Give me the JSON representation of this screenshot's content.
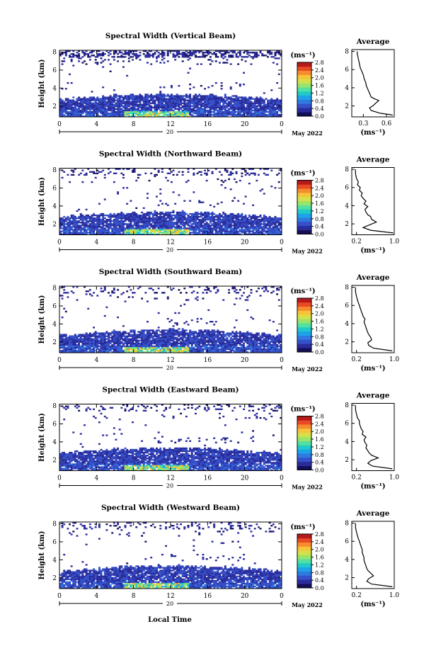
{
  "figure": {
    "xlabel": "Local Time",
    "date_label": "May 2022",
    "day_label": "20",
    "colorbar_unit": "(ms⁻¹)",
    "profile_title": "Average",
    "profile_unit": "(ms⁻¹)",
    "ylabel": "Height (km)",
    "x_ticks": [
      "0",
      "4",
      "8",
      "12",
      "16",
      "20",
      "0"
    ],
    "y_ticks": [
      "2",
      "4",
      "6",
      "8"
    ],
    "colorbar_ticks": [
      "0.0",
      "0.4",
      "0.8",
      "1.2",
      "1.6",
      "2.0",
      "2.4",
      "2.8"
    ],
    "colorscale": [
      "#150f5a",
      "#2b2c9c",
      "#3550c8",
      "#2f79e0",
      "#1ca3e8",
      "#21c9c9",
      "#53e0a0",
      "#9be46a",
      "#d6e04a",
      "#f5c43a",
      "#f78c2e",
      "#e84a26",
      "#b51a1a"
    ],
    "profile_y_ticks": [
      "2",
      "4",
      "6",
      "8"
    ]
  },
  "chart_data": [
    {
      "type": "heatmap",
      "title": "Spectral Width (Vertical Beam)",
      "xlabel": "",
      "ylabel": "Height (km)",
      "xlim": [
        0,
        24
      ],
      "ylim": [
        0.8,
        8.2
      ],
      "zlim": [
        0.0,
        2.8
      ],
      "note_regions": [
        {
          "region": "0.8-3 km, 0-24 h",
          "typical_value": 0.4,
          "max_value": 2.2,
          "max_near": "8-12 h, 1 km"
        },
        {
          "region": "7-8 km, 1.5-21 h",
          "typical_value": 0.2
        }
      ],
      "profile": {
        "title": "Average",
        "xlabel": "(ms⁻¹)",
        "x_ticks": [
          "0.3",
          "0.6"
        ],
        "xlim": [
          0.15,
          0.7
        ],
        "ylim": [
          0.8,
          8.2
        ],
        "height": [
          1.0,
          1.2,
          1.5,
          1.8,
          2.0,
          2.3,
          2.6,
          2.8,
          3.0,
          3.4,
          3.8,
          4.2,
          4.6,
          5.0,
          5.4,
          5.8,
          6.2,
          6.6,
          7.0,
          7.4,
          7.8,
          8.0
        ],
        "value": [
          0.68,
          0.52,
          0.4,
          0.38,
          0.42,
          0.46,
          0.5,
          0.44,
          0.4,
          0.38,
          0.36,
          0.34,
          0.33,
          0.31,
          0.3,
          0.28,
          0.26,
          0.25,
          0.24,
          0.23,
          0.22,
          0.22
        ]
      }
    },
    {
      "type": "heatmap",
      "title": "Spectral Width (Northward Beam)",
      "xlabel": "",
      "ylabel": "Height (km)",
      "xlim": [
        0,
        24
      ],
      "ylim": [
        0.8,
        8.2
      ],
      "zlim": [
        0.0,
        2.8
      ],
      "note_regions": [
        {
          "region": "0.8-3.3 km, 0-24 h",
          "typical_value": 0.4,
          "max_value": 1.8,
          "max_near": "8-14 h, 1 km"
        },
        {
          "region": "6.5-8 km, sparse",
          "typical_value": 0.2
        }
      ],
      "profile": {
        "title": "Average",
        "xlabel": "(ms⁻¹)",
        "x_ticks": [
          "0.2",
          "1.0"
        ],
        "xlim": [
          0.1,
          1.0
        ],
        "ylim": [
          0.8,
          8.2
        ],
        "height": [
          1.0,
          1.3,
          1.6,
          1.9,
          2.2,
          2.5,
          2.8,
          3.0,
          3.3,
          3.6,
          3.9,
          4.2,
          4.5,
          4.8,
          5.1,
          5.4,
          5.7,
          6.0,
          6.3,
          6.6,
          7.0,
          7.5,
          8.0
        ],
        "value": [
          0.98,
          0.5,
          0.34,
          0.48,
          0.62,
          0.52,
          0.5,
          0.44,
          0.4,
          0.38,
          0.44,
          0.36,
          0.4,
          0.34,
          0.3,
          0.32,
          0.26,
          0.28,
          0.22,
          0.24,
          0.2,
          0.18,
          0.18
        ]
      }
    },
    {
      "type": "heatmap",
      "title": "Spectral Width (Southward Beam)",
      "xlabel": "",
      "ylabel": "Height (km)",
      "xlim": [
        0,
        24
      ],
      "ylim": [
        0.8,
        8.2
      ],
      "zlim": [
        0.0,
        2.8
      ],
      "note_regions": [
        {
          "region": "0.8-3.3 km, 0-24 h",
          "typical_value": 0.4,
          "max_value": 1.8,
          "max_near": "8-14 h, 1 km"
        },
        {
          "region": "6.5-8 km, sparse",
          "typical_value": 0.2
        }
      ],
      "profile": {
        "title": "Average",
        "xlabel": "(ms⁻¹)",
        "x_ticks": [
          "0.2",
          "1.0"
        ],
        "xlim": [
          0.1,
          1.0
        ],
        "ylim": [
          0.8,
          8.2
        ],
        "height": [
          1.0,
          1.3,
          1.6,
          1.9,
          2.2,
          2.5,
          2.8,
          3.0,
          3.3,
          3.6,
          3.9,
          4.2,
          4.5,
          4.8,
          5.1,
          5.4,
          5.7,
          6.0,
          6.3,
          6.6,
          7.0,
          7.5,
          8.0
        ],
        "value": [
          0.96,
          0.56,
          0.46,
          0.44,
          0.52,
          0.5,
          0.46,
          0.44,
          0.42,
          0.4,
          0.38,
          0.36,
          0.38,
          0.34,
          0.32,
          0.3,
          0.28,
          0.26,
          0.24,
          0.22,
          0.2,
          0.18,
          0.18
        ]
      }
    },
    {
      "type": "heatmap",
      "title": "Spectral Width (Eastward Beam)",
      "xlabel": "",
      "ylabel": "Height (km)",
      "xlim": [
        0,
        24
      ],
      "ylim": [
        0.8,
        8.2
      ],
      "zlim": [
        0.0,
        2.8
      ],
      "note_regions": [
        {
          "region": "0.8-3.3 km, 0-24 h",
          "typical_value": 0.4,
          "max_value": 2.6,
          "max_near": "8 h, 1 km"
        },
        {
          "region": "6.5-8 km, sparse",
          "typical_value": 0.2
        }
      ],
      "profile": {
        "title": "Average",
        "xlabel": "(ms⁻¹)",
        "x_ticks": [
          "0.2",
          "1.0"
        ],
        "xlim": [
          0.1,
          1.0
        ],
        "ylim": [
          0.8,
          8.2
        ],
        "height": [
          1.0,
          1.3,
          1.6,
          1.9,
          2.2,
          2.5,
          2.8,
          3.0,
          3.3,
          3.6,
          3.9,
          4.2,
          4.5,
          4.8,
          5.1,
          5.4,
          5.7,
          6.0,
          6.3,
          6.6,
          7.0,
          7.5,
          8.0
        ],
        "value": [
          0.96,
          0.54,
          0.44,
          0.5,
          0.66,
          0.52,
          0.46,
          0.44,
          0.4,
          0.42,
          0.38,
          0.36,
          0.4,
          0.32,
          0.34,
          0.3,
          0.28,
          0.26,
          0.26,
          0.22,
          0.2,
          0.18,
          0.18
        ]
      }
    },
    {
      "type": "heatmap",
      "title": "Spectral Width (Westward Beam)",
      "xlabel": "Local Time",
      "ylabel": "Height (km)",
      "xlim": [
        0,
        24
      ],
      "ylim": [
        0.8,
        8.2
      ],
      "zlim": [
        0.0,
        2.8
      ],
      "note_regions": [
        {
          "region": "0.8-3.3 km, 0-24 h",
          "typical_value": 0.4,
          "max_value": 2.2,
          "max_near": "8-12 h, 1 km"
        },
        {
          "region": "6.5-8 km, sparse",
          "typical_value": 0.2
        }
      ],
      "profile": {
        "title": "Average",
        "xlabel": "(ms⁻¹)",
        "x_ticks": [
          "0.2",
          "1.0"
        ],
        "xlim": [
          0.1,
          1.0
        ],
        "ylim": [
          0.8,
          8.2
        ],
        "height": [
          1.0,
          1.3,
          1.6,
          1.9,
          2.2,
          2.5,
          2.8,
          3.0,
          3.3,
          3.6,
          3.9,
          4.2,
          4.5,
          4.8,
          5.1,
          5.4,
          5.7,
          6.0,
          6.3,
          6.6,
          7.0,
          7.5,
          8.0
        ],
        "value": [
          0.96,
          0.52,
          0.42,
          0.46,
          0.56,
          0.5,
          0.44,
          0.42,
          0.4,
          0.38,
          0.36,
          0.36,
          0.34,
          0.32,
          0.32,
          0.3,
          0.28,
          0.26,
          0.24,
          0.22,
          0.2,
          0.18,
          0.18
        ]
      }
    }
  ]
}
